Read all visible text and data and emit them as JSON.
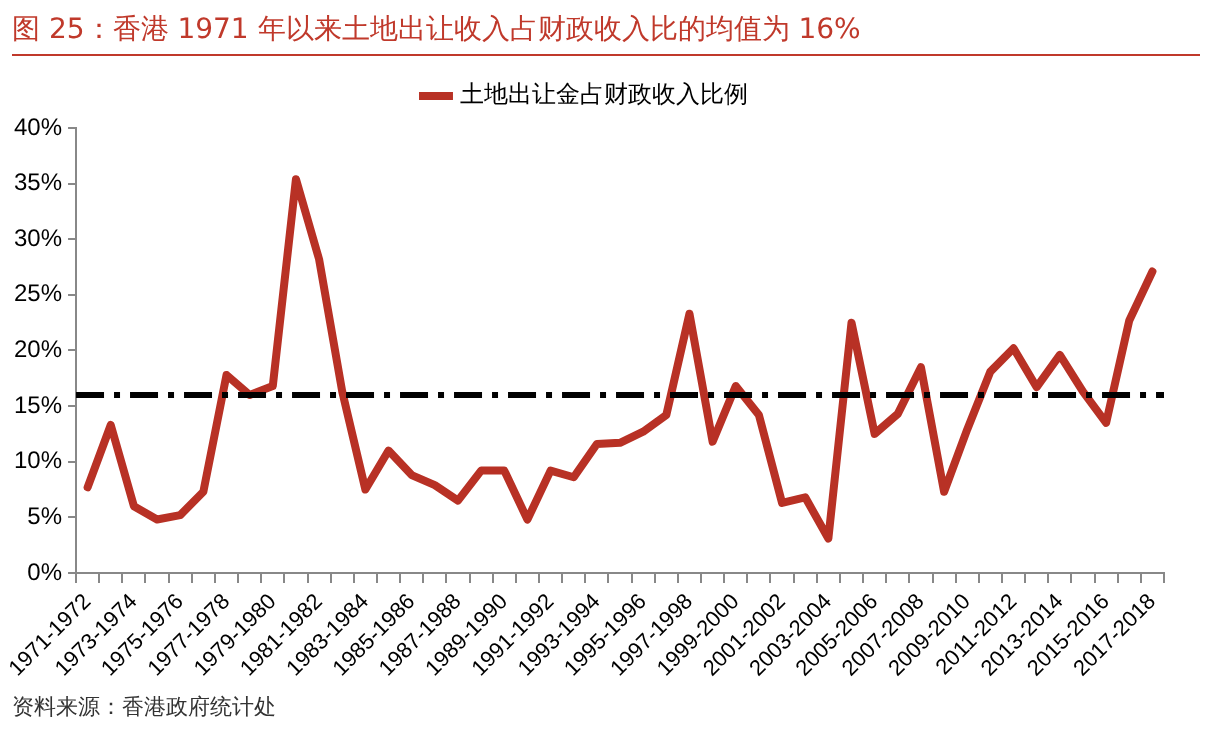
{
  "chart_data": {
    "type": "line",
    "title": "图 25：香港 1971 年以来土地出让收入占财政收入比的均值为 16%",
    "categories": [
      "1971-1972",
      null,
      "1973-1974",
      null,
      "1975-1976",
      null,
      "1977-1978",
      null,
      "1979-1980",
      null,
      "1981-1982",
      null,
      "1983-1984",
      null,
      "1985-1986",
      null,
      "1987-1988",
      null,
      "1989-1990",
      null,
      "1991-1992",
      null,
      "1993-1994",
      null,
      "1995-1996",
      null,
      "1997-1998",
      null,
      "1999-2000",
      null,
      "2001-2002",
      null,
      "2003-2004",
      null,
      "2005-2006",
      null,
      "2007-2008",
      null,
      "2009-2010",
      null,
      "2011-2012",
      null,
      "2013-2014",
      null,
      "2015-2016",
      null,
      "2017-2018"
    ],
    "series": [
      {
        "name": "土地出让金占财政收入比例",
        "color": "#b83125",
        "values": [
          7.7,
          13.3,
          6.0,
          4.8,
          5.2,
          7.3,
          17.8,
          16.0,
          16.8,
          35.4,
          28.2,
          16.3,
          7.5,
          11.0,
          8.8,
          7.9,
          6.5,
          9.2,
          9.2,
          4.8,
          9.2,
          8.6,
          11.6,
          11.7,
          12.7,
          14.2,
          23.3,
          11.8,
          16.8,
          14.2,
          6.3,
          6.8,
          3.1,
          22.5,
          12.5,
          14.3,
          18.5,
          7.3,
          12.9,
          18.1,
          20.2,
          16.7,
          19.6,
          16.3,
          13.5,
          22.7,
          27.1
        ]
      }
    ],
    "ylim": [
      0,
      40
    ],
    "yticks": [
      {
        "value": 0,
        "label": "0%"
      },
      {
        "value": 5,
        "label": "5%"
      },
      {
        "value": 10,
        "label": "10%"
      },
      {
        "value": 15,
        "label": "15%"
      },
      {
        "value": 20,
        "label": "20%"
      },
      {
        "value": 25,
        "label": "25%"
      },
      {
        "value": 30,
        "label": "30%"
      },
      {
        "value": 35,
        "label": "35%"
      },
      {
        "value": 40,
        "label": "40%"
      }
    ],
    "ref_lines": [
      {
        "axis": "y",
        "value": 16,
        "color": "#000000",
        "line_style": "dashed"
      }
    ],
    "grid": false,
    "legend": "top",
    "marker": "none",
    "line_style": "solid",
    "annotations": [
      "资料来源：香港政府统计处"
    ]
  }
}
